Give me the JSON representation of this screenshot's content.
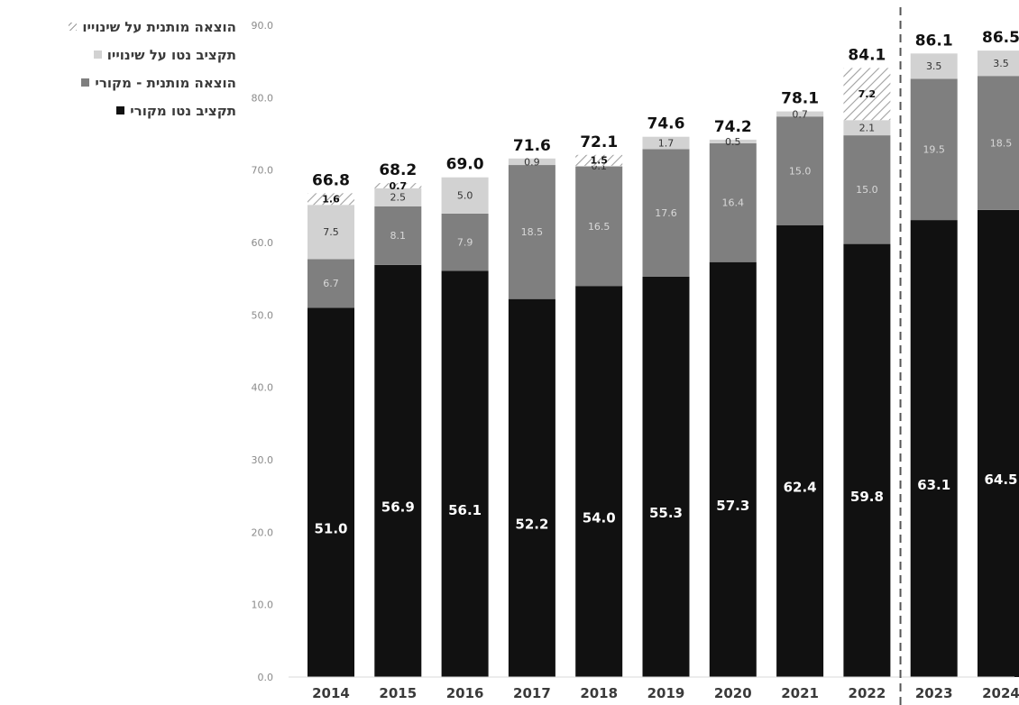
{
  "chart_data": {
    "type": "bar",
    "stacked": true,
    "categories": [
      "2014",
      "2015",
      "2016",
      "2017",
      "2018",
      "2019",
      "2020",
      "2021",
      "2022",
      "2023",
      "2024"
    ],
    "series": [
      {
        "name": "תקציב נטו מקורי",
        "color": "#111111",
        "values": [
          51.0,
          56.9,
          56.1,
          52.2,
          54.0,
          55.3,
          57.3,
          62.4,
          59.8,
          63.1,
          64.5
        ]
      },
      {
        "name": "הוצאה מותנית - מקורי",
        "color": "#7f7f7f",
        "values": [
          6.7,
          8.1,
          7.9,
          18.5,
          16.5,
          17.6,
          16.4,
          15.0,
          15.0,
          19.5,
          18.5
        ]
      },
      {
        "name": "תקציב נטו על שינוייו",
        "color": "#d2d2d2",
        "values": [
          7.5,
          2.5,
          5.0,
          0.9,
          0.1,
          1.7,
          0.5,
          0.7,
          2.1,
          3.5,
          3.5
        ]
      },
      {
        "name": "הוצאה מותנית על שינוייו",
        "color": "hatch",
        "values": [
          1.6,
          0.7,
          null,
          null,
          1.5,
          null,
          null,
          null,
          7.2,
          null,
          null
        ]
      }
    ],
    "totals": [
      "66.8",
      "68.2",
      "69.0",
      "71.6",
      "72.1",
      "74.6",
      "74.2",
      "78.1",
      "84.1",
      "86.1",
      "86.5"
    ],
    "ylim": [
      0,
      90
    ],
    "yticks": [
      "0.0",
      "10.0",
      "20.0",
      "30.0",
      "40.0",
      "50.0",
      "60.0",
      "70.0",
      "80.0",
      "90.0"
    ],
    "legend_position": "top-left",
    "grid": false,
    "forecast_divider_after": "2022"
  }
}
